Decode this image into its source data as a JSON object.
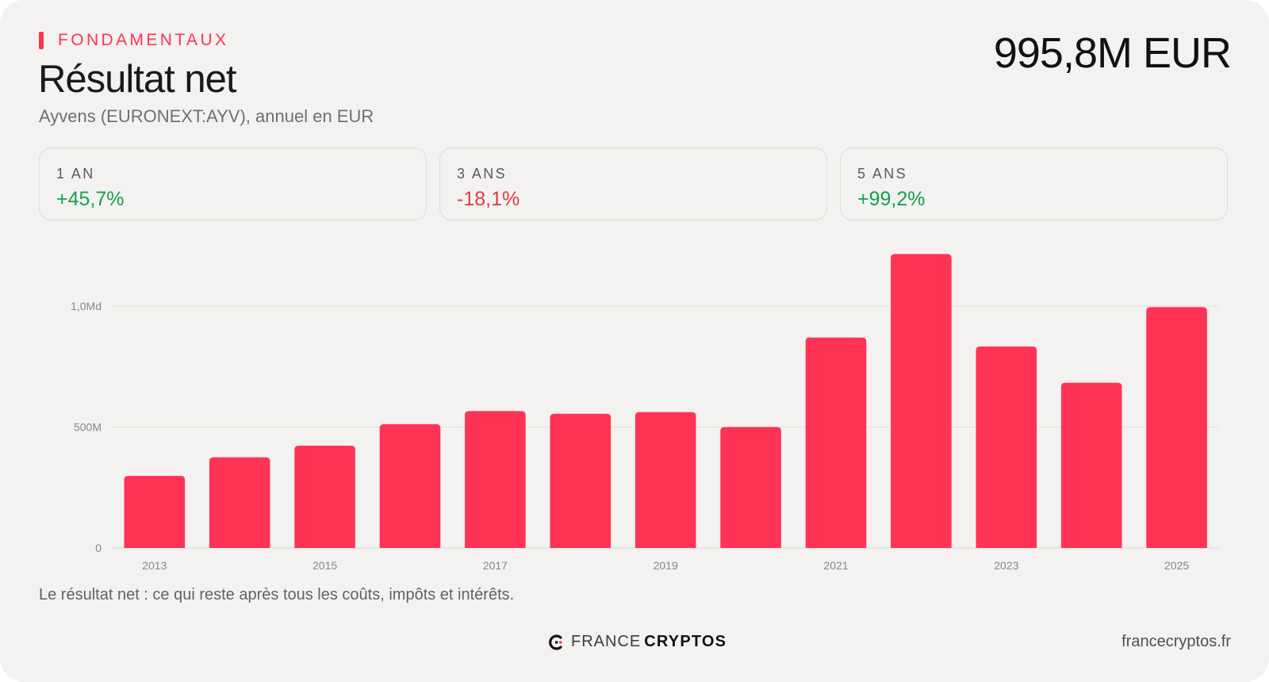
{
  "header": {
    "eyebrow": "FONDAMENTAUX",
    "title": "Résultat net",
    "subtitle": "Ayvens (EURONEXT:AYV), annuel en EUR",
    "headline_value": "995,8M EUR"
  },
  "stats": [
    {
      "label": "1 AN",
      "value": "+45,7%",
      "trend": "up"
    },
    {
      "label": "3 ANS",
      "value": "-18,1%",
      "trend": "down"
    },
    {
      "label": "5 ANS",
      "value": "+99,2%",
      "trend": "up"
    }
  ],
  "colors": {
    "accent": "#ff3355",
    "positive": "#13a04b",
    "negative": "#e23a43",
    "bar": "#ff3355"
  },
  "chart_data": {
    "type": "bar",
    "categories": [
      "2013",
      "2014",
      "2015",
      "2016",
      "2017",
      "2018",
      "2019",
      "2020",
      "2021",
      "2022",
      "2023",
      "2024",
      "2025"
    ],
    "values": [
      298,
      375,
      423,
      512,
      566,
      555,
      562,
      500,
      870,
      1215,
      833,
      683,
      995.8
    ],
    "unit": "M EUR",
    "x_tick_labels": [
      "2013",
      "",
      "2015",
      "",
      "2017",
      "",
      "2019",
      "",
      "2021",
      "",
      "2023",
      "",
      "2025"
    ],
    "y_ticks": [
      {
        "value": 0,
        "label": "0"
      },
      {
        "value": 500,
        "label": "500M"
      },
      {
        "value": 1000,
        "label": "1,0Md"
      }
    ],
    "ylim": [
      0,
      1215
    ],
    "grid": true,
    "legend": "none"
  },
  "footer": {
    "caption": "Le résultat net : ce qui reste après tous les coûts, impôts et intérêts.",
    "brand_light": "FRANCE",
    "brand_bold": "CRYPTOS",
    "brand_icon": "france-cryptos-logo-icon",
    "site": "francecryptos.fr"
  }
}
